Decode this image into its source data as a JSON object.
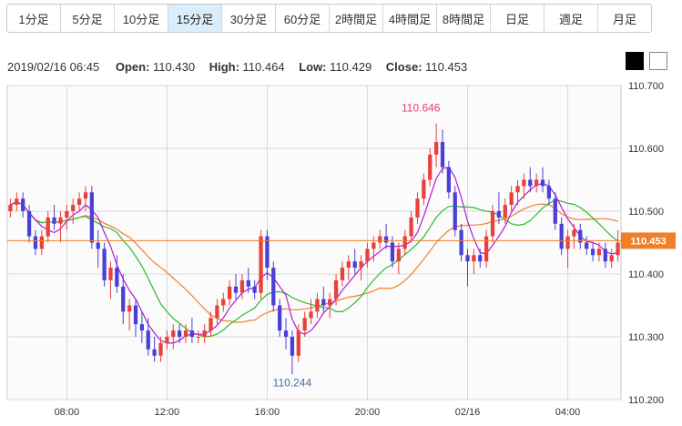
{
  "timeframes": [
    {
      "label": "1分足",
      "active": false
    },
    {
      "label": "5分足",
      "active": false
    },
    {
      "label": "10分足",
      "active": false
    },
    {
      "label": "15分足",
      "active": true
    },
    {
      "label": "30分足",
      "active": false
    },
    {
      "label": "60分足",
      "active": false
    },
    {
      "label": "2時間足",
      "active": false
    },
    {
      "label": "4時間足",
      "active": false
    },
    {
      "label": "8時間足",
      "active": false
    },
    {
      "label": "日足",
      "active": false
    },
    {
      "label": "週足",
      "active": false
    },
    {
      "label": "月足",
      "active": false
    }
  ],
  "ohlc": {
    "datetime": "2019/02/16 06:45",
    "open_label": "Open:",
    "open": "110.430",
    "high_label": "High:",
    "high": "110.464",
    "low_label": "Low:",
    "low": "110.429",
    "close_label": "Close:",
    "close": "110.453"
  },
  "colors": {
    "up": "#e8403a",
    "down": "#4a3fd6",
    "ma_short": "#b51ad6",
    "ma_mid": "#2dbb2d",
    "ma_long": "#f07f2a",
    "price_line": "#f07f2a",
    "grid": "#d8d8d8",
    "plot_bg": "#fbfbfb",
    "tab_active": "#d9eefa",
    "high_label": "#e0436a",
    "low_label": "#4a6fa5"
  },
  "chart_data": {
    "type": "candlestick",
    "ylim": [
      110.2,
      110.7
    ],
    "yticks": [
      "110.700",
      "110.600",
      "110.500",
      "110.400",
      "110.300",
      "110.200"
    ],
    "xticks": [
      "08:00",
      "12:00",
      "16:00",
      "20:00",
      "02/16",
      "04:00"
    ],
    "xtick_index": [
      9,
      25,
      41,
      57,
      73,
      89
    ],
    "current_price": 110.453,
    "current_price_label": "110.453",
    "high_marker": {
      "index": 67,
      "value": 110.646,
      "label": "110.646"
    },
    "low_marker": {
      "index": 45,
      "value": 110.244,
      "label": "110.244"
    },
    "candles": [
      [
        110.5,
        110.52,
        110.49,
        110.51
      ],
      [
        110.51,
        110.53,
        110.5,
        110.52
      ],
      [
        110.52,
        110.53,
        110.49,
        110.5
      ],
      [
        110.5,
        110.51,
        110.45,
        110.46
      ],
      [
        110.46,
        110.47,
        110.43,
        110.44
      ],
      [
        110.44,
        110.47,
        110.43,
        110.46
      ],
      [
        110.46,
        110.5,
        110.45,
        110.49
      ],
      [
        110.49,
        110.51,
        110.47,
        110.48
      ],
      [
        110.48,
        110.5,
        110.45,
        110.49
      ],
      [
        110.49,
        110.51,
        110.47,
        110.5
      ],
      [
        110.5,
        110.52,
        110.48,
        110.51
      ],
      [
        110.51,
        110.53,
        110.5,
        110.52
      ],
      [
        110.52,
        110.54,
        110.5,
        110.53
      ],
      [
        110.53,
        110.54,
        110.44,
        110.45
      ],
      [
        110.45,
        110.47,
        110.41,
        110.44
      ],
      [
        110.44,
        110.45,
        110.38,
        110.39
      ],
      [
        110.39,
        110.42,
        110.36,
        110.41
      ],
      [
        110.41,
        110.43,
        110.37,
        110.38
      ],
      [
        110.38,
        110.4,
        110.32,
        110.34
      ],
      [
        110.34,
        110.36,
        110.31,
        110.35
      ],
      [
        110.35,
        110.36,
        110.3,
        110.32
      ],
      [
        110.32,
        110.34,
        110.29,
        110.31
      ],
      [
        110.31,
        110.33,
        110.27,
        110.28
      ],
      [
        110.28,
        110.3,
        110.26,
        110.27
      ],
      [
        110.27,
        110.3,
        110.26,
        110.29
      ],
      [
        110.29,
        110.31,
        110.28,
        110.3
      ],
      [
        110.3,
        110.32,
        110.28,
        110.31
      ],
      [
        110.31,
        110.32,
        110.29,
        110.3
      ],
      [
        110.3,
        110.32,
        110.29,
        110.31
      ],
      [
        110.31,
        110.33,
        110.29,
        110.3
      ],
      [
        110.3,
        110.31,
        110.29,
        110.3
      ],
      [
        110.3,
        110.32,
        110.29,
        110.31
      ],
      [
        110.31,
        110.34,
        110.3,
        110.33
      ],
      [
        110.33,
        110.36,
        110.32,
        110.35
      ],
      [
        110.35,
        110.37,
        110.34,
        110.36
      ],
      [
        110.36,
        110.39,
        110.35,
        110.38
      ],
      [
        110.38,
        110.4,
        110.36,
        110.37
      ],
      [
        110.37,
        110.4,
        110.36,
        110.39
      ],
      [
        110.39,
        110.41,
        110.37,
        110.38
      ],
      [
        110.38,
        110.39,
        110.36,
        110.37
      ],
      [
        110.37,
        110.47,
        110.36,
        110.46
      ],
      [
        110.46,
        110.47,
        110.39,
        110.41
      ],
      [
        110.41,
        110.42,
        110.34,
        110.35
      ],
      [
        110.35,
        110.36,
        110.3,
        110.31
      ],
      [
        110.31,
        110.33,
        110.28,
        110.3
      ],
      [
        110.3,
        110.31,
        110.24,
        110.27
      ],
      [
        110.27,
        110.32,
        110.26,
        110.31
      ],
      [
        110.31,
        110.34,
        110.3,
        110.33
      ],
      [
        110.33,
        110.36,
        110.32,
        110.34
      ],
      [
        110.34,
        110.37,
        110.33,
        110.36
      ],
      [
        110.36,
        110.38,
        110.34,
        110.35
      ],
      [
        110.35,
        110.37,
        110.33,
        110.36
      ],
      [
        110.36,
        110.4,
        110.35,
        110.39
      ],
      [
        110.39,
        110.42,
        110.38,
        110.41
      ],
      [
        110.41,
        110.43,
        110.39,
        110.42
      ],
      [
        110.42,
        110.44,
        110.4,
        110.41
      ],
      [
        110.41,
        110.43,
        110.39,
        110.42
      ],
      [
        110.42,
        110.45,
        110.41,
        110.44
      ],
      [
        110.44,
        110.46,
        110.42,
        110.45
      ],
      [
        110.45,
        110.47,
        110.44,
        110.46
      ],
      [
        110.46,
        110.48,
        110.44,
        110.45
      ],
      [
        110.45,
        110.46,
        110.41,
        110.42
      ],
      [
        110.42,
        110.45,
        110.4,
        110.44
      ],
      [
        110.44,
        110.47,
        110.43,
        110.46
      ],
      [
        110.46,
        110.5,
        110.45,
        110.49
      ],
      [
        110.49,
        110.53,
        110.48,
        110.52
      ],
      [
        110.52,
        110.56,
        110.51,
        110.55
      ],
      [
        110.55,
        110.6,
        110.54,
        110.59
      ],
      [
        110.59,
        110.64,
        110.57,
        110.61
      ],
      [
        110.61,
        110.63,
        110.56,
        110.57
      ],
      [
        110.57,
        110.58,
        110.52,
        110.53
      ],
      [
        110.53,
        110.54,
        110.46,
        110.47
      ],
      [
        110.47,
        110.48,
        110.42,
        110.43
      ],
      [
        110.43,
        110.44,
        110.38,
        110.42
      ],
      [
        110.42,
        110.44,
        110.4,
        110.43
      ],
      [
        110.43,
        110.44,
        110.41,
        110.42
      ],
      [
        110.42,
        110.47,
        110.41,
        110.46
      ],
      [
        110.46,
        110.51,
        110.45,
        110.5
      ],
      [
        110.5,
        110.53,
        110.48,
        110.49
      ],
      [
        110.49,
        110.52,
        110.48,
        110.51
      ],
      [
        110.51,
        110.54,
        110.5,
        110.53
      ],
      [
        110.53,
        110.55,
        110.51,
        110.54
      ],
      [
        110.54,
        110.56,
        110.52,
        110.55
      ],
      [
        110.55,
        110.57,
        110.53,
        110.54
      ],
      [
        110.54,
        110.56,
        110.53,
        110.55
      ],
      [
        110.55,
        110.57,
        110.53,
        110.54
      ],
      [
        110.54,
        110.55,
        110.51,
        110.52
      ],
      [
        110.52,
        110.53,
        110.47,
        110.48
      ],
      [
        110.48,
        110.49,
        110.43,
        110.44
      ],
      [
        110.44,
        110.47,
        110.41,
        110.46
      ],
      [
        110.46,
        110.48,
        110.44,
        110.47
      ],
      [
        110.47,
        110.48,
        110.44,
        110.45
      ],
      [
        110.45,
        110.46,
        110.43,
        110.44
      ],
      [
        110.44,
        110.45,
        110.42,
        110.43
      ],
      [
        110.43,
        110.45,
        110.42,
        110.44
      ],
      [
        110.44,
        110.45,
        110.41,
        110.42
      ],
      [
        110.42,
        110.44,
        110.41,
        110.43
      ],
      [
        110.43,
        110.47,
        110.42,
        110.45
      ]
    ]
  }
}
